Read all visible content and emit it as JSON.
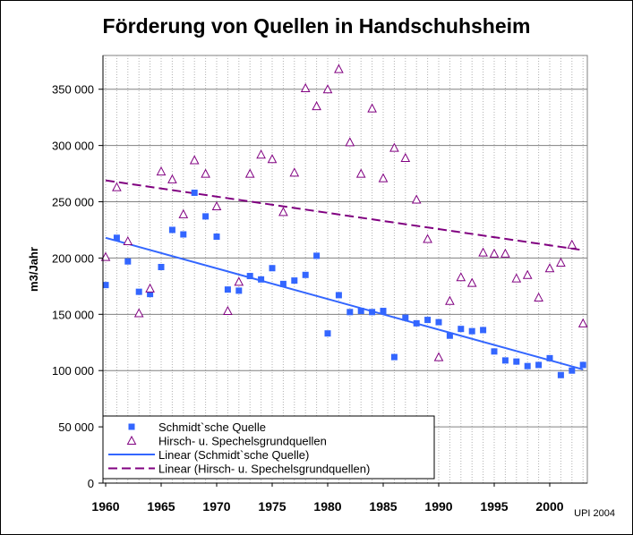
{
  "chart_data": {
    "type": "scatter",
    "title": "Förderung von Quellen in Handschuhsheim",
    "credit": "UPI 2004",
    "ylabel": "m3/Jahr",
    "xlabel": "",
    "xlim": [
      1960,
      2003
    ],
    "ylim": [
      0,
      380000
    ],
    "x_ticks": [
      1960,
      1965,
      1970,
      1975,
      1980,
      1985,
      1990,
      1995,
      2000
    ],
    "y_ticks": [
      0,
      50000,
      100000,
      150000,
      200000,
      250000,
      300000,
      350000
    ],
    "y_tick_labels": [
      "0",
      "50 000",
      "100 000",
      "150 000",
      "200 000",
      "250 000",
      "300 000",
      "350 000"
    ],
    "grid": {
      "horizontal": true,
      "vertical_minor_dotted": true
    },
    "legend_position": "bottom-left",
    "colors": {
      "schmidt": "#3366ff",
      "hirsch": "#800080",
      "gridline": "#808080",
      "plot_background": "#ffffff"
    },
    "series": [
      {
        "name": "Schmidt`sche Quelle",
        "marker": "square",
        "color": "#3366ff",
        "points": [
          [
            1960,
            176000
          ],
          [
            1961,
            218000
          ],
          [
            1962,
            197000
          ],
          [
            1963,
            170000
          ],
          [
            1964,
            168000
          ],
          [
            1965,
            192000
          ],
          [
            1966,
            225000
          ],
          [
            1967,
            221000
          ],
          [
            1968,
            258000
          ],
          [
            1969,
            237000
          ],
          [
            1970,
            219000
          ],
          [
            1971,
            172000
          ],
          [
            1972,
            171000
          ],
          [
            1973,
            184000
          ],
          [
            1974,
            181000
          ],
          [
            1975,
            191000
          ],
          [
            1976,
            177000
          ],
          [
            1977,
            180000
          ],
          [
            1978,
            185000
          ],
          [
            1979,
            202000
          ],
          [
            1980,
            133000
          ],
          [
            1981,
            167000
          ],
          [
            1982,
            152000
          ],
          [
            1983,
            153000
          ],
          [
            1984,
            152000
          ],
          [
            1985,
            153000
          ],
          [
            1986,
            112000
          ],
          [
            1987,
            147000
          ],
          [
            1988,
            142000
          ],
          [
            1989,
            145000
          ],
          [
            1990,
            143000
          ],
          [
            1991,
            131000
          ],
          [
            1992,
            137000
          ],
          [
            1993,
            135000
          ],
          [
            1994,
            136000
          ],
          [
            1995,
            117000
          ],
          [
            1996,
            109000
          ],
          [
            1997,
            108000
          ],
          [
            1998,
            104000
          ],
          [
            1999,
            105000
          ],
          [
            2000,
            111000
          ],
          [
            2001,
            96000
          ],
          [
            2002,
            100000
          ],
          [
            2003,
            105000
          ]
        ]
      },
      {
        "name": "Hirsch- u. Spechelsgrundquellen",
        "marker": "triangle-open",
        "color": "#800080",
        "points": [
          [
            1960,
            201000
          ],
          [
            1961,
            263000
          ],
          [
            1962,
            215000
          ],
          [
            1963,
            151000
          ],
          [
            1964,
            173000
          ],
          [
            1965,
            277000
          ],
          [
            1966,
            270000
          ],
          [
            1967,
            239000
          ],
          [
            1968,
            287000
          ],
          [
            1969,
            275000
          ],
          [
            1970,
            246000
          ],
          [
            1971,
            153000
          ],
          [
            1972,
            179000
          ],
          [
            1973,
            275000
          ],
          [
            1974,
            292000
          ],
          [
            1975,
            288000
          ],
          [
            1976,
            241000
          ],
          [
            1977,
            276000
          ],
          [
            1978,
            351000
          ],
          [
            1979,
            335000
          ],
          [
            1980,
            350000
          ],
          [
            1981,
            368000
          ],
          [
            1982,
            303000
          ],
          [
            1983,
            275000
          ],
          [
            1984,
            333000
          ],
          [
            1985,
            271000
          ],
          [
            1986,
            298000
          ],
          [
            1987,
            289000
          ],
          [
            1988,
            252000
          ],
          [
            1989,
            217000
          ],
          [
            1990,
            112000
          ],
          [
            1991,
            162000
          ],
          [
            1992,
            183000
          ],
          [
            1993,
            178000
          ],
          [
            1994,
            205000
          ],
          [
            1995,
            204000
          ],
          [
            1996,
            204000
          ],
          [
            1997,
            182000
          ],
          [
            1998,
            185000
          ],
          [
            1999,
            165000
          ],
          [
            2000,
            191000
          ],
          [
            2001,
            196000
          ],
          [
            2002,
            212000
          ],
          [
            2003,
            142000
          ]
        ]
      }
    ],
    "trendlines": [
      {
        "name": "Linear (Schmidt`sche Quelle)",
        "style": "solid",
        "color": "#3366ff",
        "x": [
          1960,
          2003
        ],
        "y": [
          218000,
          101000
        ]
      },
      {
        "name": "Linear (Hirsch- u. Spechelsgrundquellen)",
        "style": "dashed",
        "color": "#800080",
        "x": [
          1960,
          2003
        ],
        "y": [
          269000,
          207000
        ]
      }
    ]
  }
}
